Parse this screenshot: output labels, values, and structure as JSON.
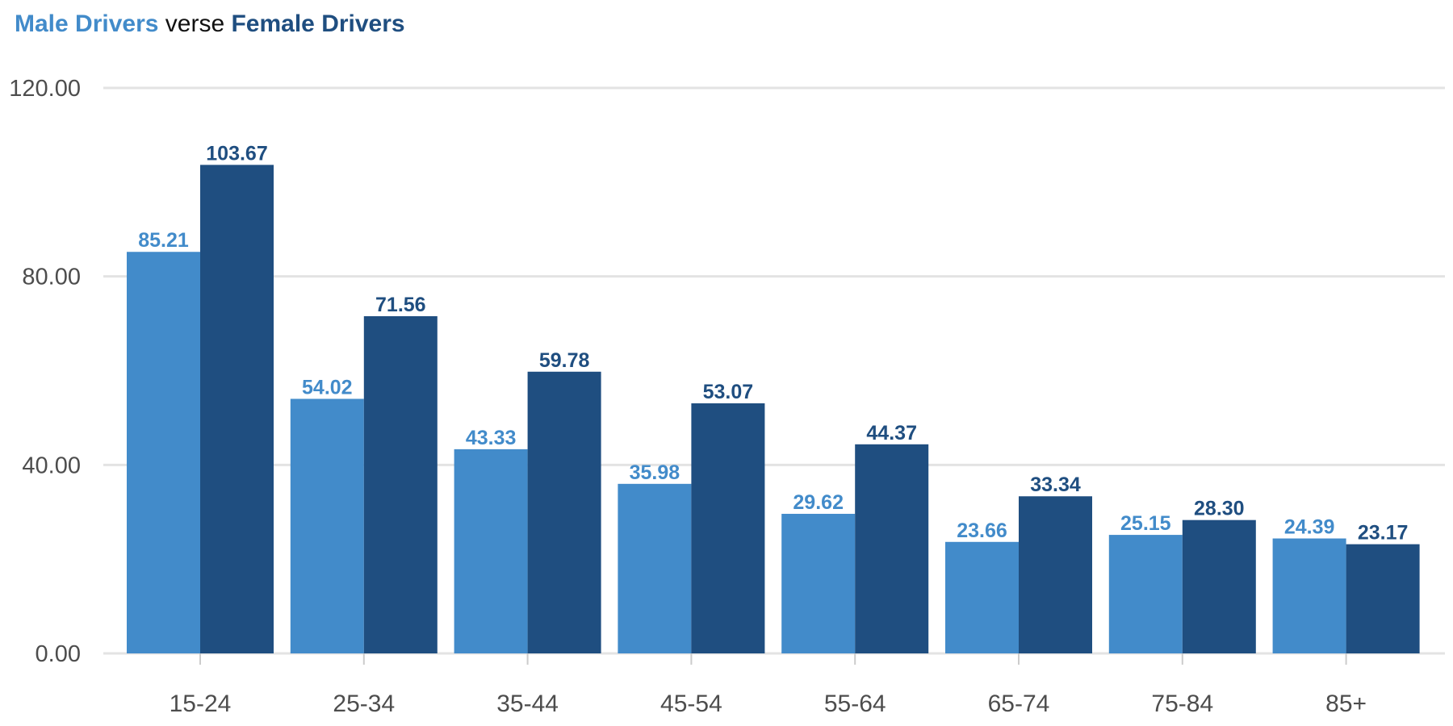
{
  "chart_data": {
    "type": "bar",
    "title_parts": {
      "male": "Male Drivers",
      "mid": " verse ",
      "female": "Female Drivers"
    },
    "categories": [
      "15-24",
      "25-34",
      "35-44",
      "45-54",
      "55-64",
      "65-74",
      "75-84",
      "85+"
    ],
    "series": [
      {
        "name": "Male Drivers",
        "color": "#428bca",
        "values": [
          85.21,
          54.02,
          43.33,
          35.98,
          29.62,
          23.66,
          25.15,
          24.39
        ],
        "labels": [
          "85.21",
          "54.02",
          "43.33",
          "35.98",
          "29.62",
          "23.66",
          "25.15",
          "24.39"
        ]
      },
      {
        "name": "Female Drivers",
        "color": "#1f4e80",
        "values": [
          103.67,
          71.56,
          59.78,
          53.07,
          44.37,
          33.34,
          28.3,
          23.17
        ],
        "labels": [
          "103.67",
          "71.56",
          "59.78",
          "53.07",
          "44.37",
          "33.34",
          "28.30",
          "23.17"
        ]
      }
    ],
    "y_ticks": [
      0,
      40,
      80,
      120
    ],
    "y_tick_labels": [
      "0.00",
      "40.00",
      "80.00",
      "120.00"
    ],
    "ylim": [
      0,
      120
    ],
    "grid": true,
    "legend": "none"
  }
}
